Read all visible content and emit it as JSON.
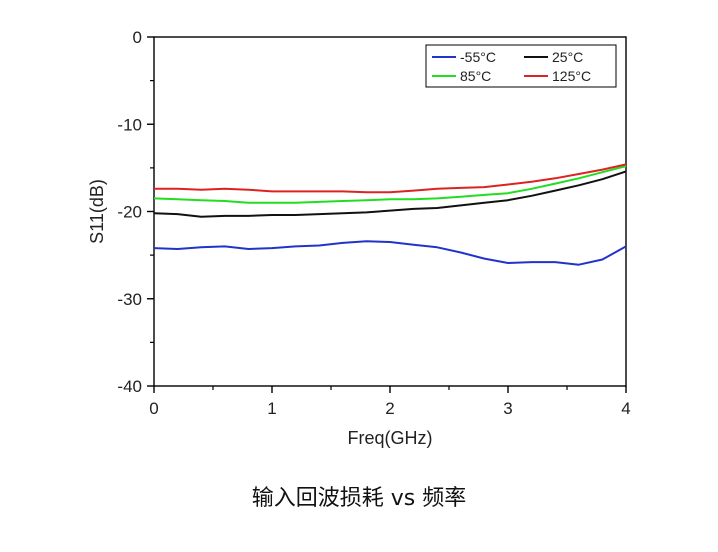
{
  "chart_data": {
    "type": "line",
    "title": "",
    "xlabel": "Freq(GHz)",
    "ylabel": "S11(dB)",
    "xlim": [
      0,
      4
    ],
    "ylim": [
      -40,
      0
    ],
    "xticks": [
      "0",
      "1",
      "2",
      "3",
      "4"
    ],
    "yticks": [
      "0",
      "-10",
      "-20",
      "-30",
      "-40"
    ],
    "grid": false,
    "legend_position": "top-right",
    "series": [
      {
        "name": "-55°C",
        "color": "#2233cc",
        "x": [
          0,
          0.2,
          0.4,
          0.6,
          0.8,
          1.0,
          1.2,
          1.4,
          1.6,
          1.8,
          2.0,
          2.2,
          2.4,
          2.6,
          2.8,
          3.0,
          3.2,
          3.4,
          3.6,
          3.8,
          4.0
        ],
        "y": [
          -24.2,
          -24.3,
          -24.1,
          -24.0,
          -24.3,
          -24.2,
          -24.0,
          -23.9,
          -23.6,
          -23.4,
          -23.5,
          -23.8,
          -24.1,
          -24.7,
          -25.4,
          -25.9,
          -25.8,
          -25.8,
          -26.1,
          -25.5,
          -24.0
        ]
      },
      {
        "name": "25°C",
        "color": "#111111",
        "x": [
          0,
          0.2,
          0.4,
          0.6,
          0.8,
          1.0,
          1.2,
          1.4,
          1.6,
          1.8,
          2.0,
          2.2,
          2.4,
          2.6,
          2.8,
          3.0,
          3.2,
          3.4,
          3.6,
          3.8,
          4.0
        ],
        "y": [
          -20.2,
          -20.3,
          -20.6,
          -20.5,
          -20.5,
          -20.4,
          -20.4,
          -20.3,
          -20.2,
          -20.1,
          -19.9,
          -19.7,
          -19.6,
          -19.3,
          -19.0,
          -18.7,
          -18.2,
          -17.6,
          -17.0,
          -16.3,
          -15.4
        ]
      },
      {
        "name": "85°C",
        "color": "#22dd22",
        "x": [
          0,
          0.2,
          0.4,
          0.6,
          0.8,
          1.0,
          1.2,
          1.4,
          1.6,
          1.8,
          2.0,
          2.2,
          2.4,
          2.6,
          2.8,
          3.0,
          3.2,
          3.4,
          3.6,
          3.8,
          4.0
        ],
        "y": [
          -18.5,
          -18.6,
          -18.7,
          -18.8,
          -19.0,
          -19.0,
          -19.0,
          -18.9,
          -18.8,
          -18.7,
          -18.6,
          -18.6,
          -18.5,
          -18.3,
          -18.1,
          -17.9,
          -17.4,
          -16.8,
          -16.2,
          -15.5,
          -14.8
        ]
      },
      {
        "name": "125°C",
        "color": "#dd2222",
        "x": [
          0,
          0.2,
          0.4,
          0.6,
          0.8,
          1.0,
          1.2,
          1.4,
          1.6,
          1.8,
          2.0,
          2.2,
          2.4,
          2.6,
          2.8,
          3.0,
          3.2,
          3.4,
          3.6,
          3.8,
          4.0
        ],
        "y": [
          -17.4,
          -17.4,
          -17.5,
          -17.4,
          -17.5,
          -17.7,
          -17.7,
          -17.7,
          -17.7,
          -17.8,
          -17.8,
          -17.6,
          -17.4,
          -17.3,
          -17.2,
          -16.9,
          -16.6,
          -16.2,
          -15.7,
          -15.2,
          -14.6
        ]
      }
    ]
  },
  "caption": "输入回波损耗 vs 频率"
}
